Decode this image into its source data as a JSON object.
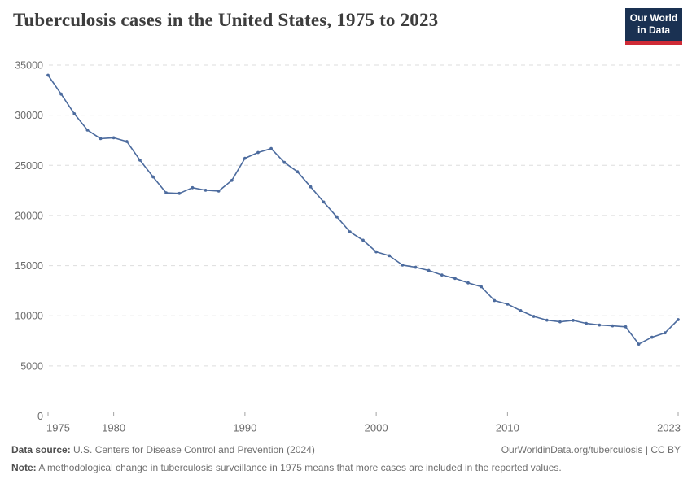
{
  "header": {
    "logo": {
      "line1": "Our World",
      "line2": "in Data",
      "bg_color": "#1a3152",
      "bar_color": "#cf2b36"
    }
  },
  "chart_data": {
    "type": "line",
    "title": "Tuberculosis cases in the United States, 1975 to 2023",
    "xlabel": "",
    "ylabel": "",
    "xlim": [
      1975,
      2023
    ],
    "ylim": [
      0,
      35000
    ],
    "x_ticks": [
      1975,
      1980,
      1990,
      2000,
      2010,
      2023
    ],
    "y_ticks": [
      0,
      5000,
      10000,
      15000,
      20000,
      25000,
      30000,
      35000
    ],
    "grid": "horizontal-dashed",
    "legend": "none",
    "colors": {
      "line": "#4c6b9e",
      "gridline": "#dddddd",
      "axis": "#a3a3a3",
      "tick_label": "#6b6b6b"
    },
    "series": [
      {
        "name": "United States",
        "x": [
          1975,
          1976,
          1977,
          1978,
          1979,
          1980,
          1981,
          1982,
          1983,
          1984,
          1985,
          1986,
          1987,
          1988,
          1989,
          1990,
          1991,
          1992,
          1993,
          1994,
          1995,
          1996,
          1997,
          1998,
          1999,
          2000,
          2001,
          2002,
          2003,
          2004,
          2005,
          2006,
          2007,
          2008,
          2009,
          2010,
          2011,
          2012,
          2013,
          2014,
          2015,
          2016,
          2017,
          2018,
          2019,
          2020,
          2021,
          2022,
          2023
        ],
        "values": [
          33989,
          32105,
          30145,
          28521,
          27669,
          27749,
          27373,
          25520,
          23846,
          22255,
          22201,
          22768,
          22517,
          22436,
          23495,
          25701,
          26283,
          26673,
          25287,
          24361,
          22860,
          21337,
          19855,
          18361,
          17531,
          16377,
          15989,
          15056,
          14837,
          14517,
          14068,
          13728,
          13281,
          12895,
          11520,
          11159,
          10510,
          9940,
          9561,
          9398,
          9537,
          9242,
          9074,
          8996,
          8895,
          7171,
          7860,
          8300,
          9615
        ]
      }
    ]
  },
  "footer": {
    "source_label": "Data source:",
    "source_text": " U.S. Centers for Disease Control and Prevention (2024)",
    "link_text": "OurWorldinData.org/tuberculosis | CC BY",
    "note_label": "Note:",
    "note_text": " A methodological change in tuberculosis surveillance in 1975 means that more cases are included in the reported values."
  }
}
